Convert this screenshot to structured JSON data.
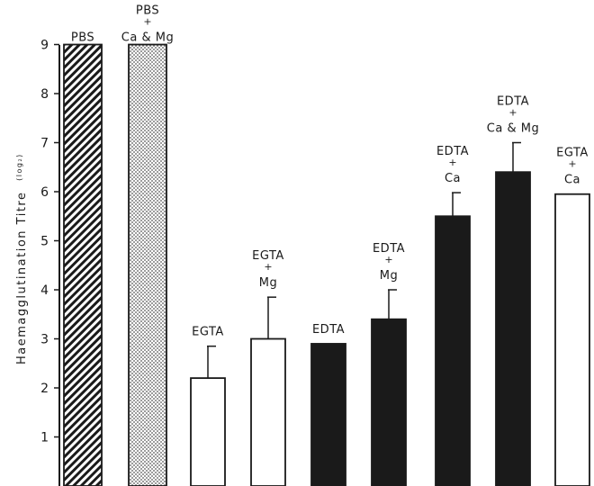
{
  "chart_data": {
    "type": "bar",
    "title": "",
    "xlabel": "",
    "ylabel": "Haemagglutination Titre",
    "ylabel_unit": "(log₂)",
    "ylim": [
      0,
      9
    ],
    "yticks": [
      1,
      2,
      3,
      4,
      5,
      6,
      7,
      8,
      9
    ],
    "grid": false,
    "categories": [
      "PBS",
      "PBS + Ca & Mg",
      "EGTA",
      "EGTA + Mg",
      "EDTA",
      "EDTA + Mg",
      "EDTA + Ca",
      "EDTA + Ca & Mg",
      "EGTA + Ca"
    ],
    "bars": [
      {
        "label_lines": [
          "PBS"
        ],
        "value": 9.0,
        "error": null,
        "fill": "hatch"
      },
      {
        "label_lines": [
          "PBS",
          "+",
          "Ca & Mg"
        ],
        "value": 9.0,
        "error": null,
        "fill": "dots"
      },
      {
        "label_lines": [
          "EGTA"
        ],
        "value": 2.2,
        "error": 0.65,
        "fill": "white"
      },
      {
        "label_lines": [
          "EGTA",
          "+",
          "Mg"
        ],
        "value": 3.0,
        "error": 0.85,
        "fill": "white"
      },
      {
        "label_lines": [
          "EDTA"
        ],
        "value": 2.9,
        "error": null,
        "fill": "black"
      },
      {
        "label_lines": [
          "EDTA",
          "+",
          "Mg"
        ],
        "value": 3.4,
        "error": 0.6,
        "fill": "black"
      },
      {
        "label_lines": [
          "EDTA",
          "+",
          "Ca"
        ],
        "value": 5.5,
        "error": 0.48,
        "fill": "black"
      },
      {
        "label_lines": [
          "EDTA",
          "+",
          "Ca & Mg"
        ],
        "value": 6.4,
        "error": 0.6,
        "fill": "black"
      },
      {
        "label_lines": [
          "EGTA",
          "+",
          "Ca"
        ],
        "value": 5.95,
        "error": null,
        "fill": "white"
      }
    ]
  }
}
